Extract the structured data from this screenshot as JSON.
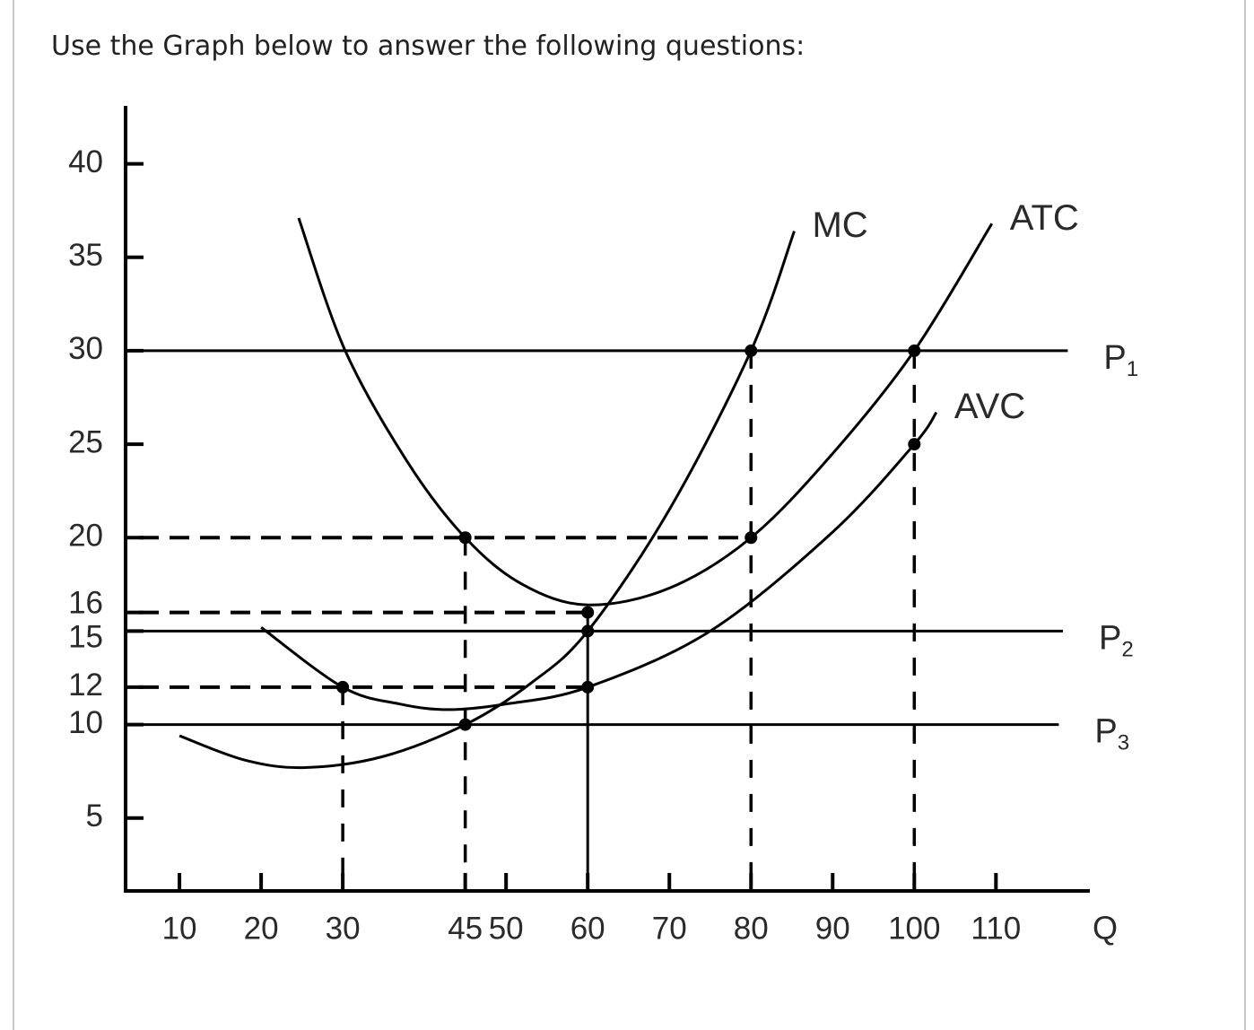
{
  "prompt": "Use the Graph below to answer the following questions:",
  "chart_data": {
    "type": "line",
    "x_label": "Q",
    "xlim": [
      3.4,
      121.5
    ],
    "ylim": [
      1.1,
      43.1
    ],
    "xticks": [
      10,
      20,
      30,
      45,
      50,
      60,
      70,
      80,
      90,
      100,
      110
    ],
    "yticks": [
      40,
      35,
      30,
      25,
      20,
      16,
      15,
      12,
      10,
      5
    ],
    "series": [
      {
        "name": "ATC",
        "color": "#000000",
        "x": [
          24.6,
          30.3,
          38,
          45,
          52,
          60,
          70,
          80,
          90,
          100,
          109.5
        ],
        "values": [
          37.1,
          30,
          24,
          20,
          17.5,
          16.4,
          17.3,
          20,
          24.5,
          30,
          36.8
        ]
      },
      {
        "name": "AVC",
        "color": "#000000",
        "x": [
          20,
          30,
          37,
          43,
          50,
          60,
          75,
          90,
          100,
          102.7
        ],
        "values": [
          15.2,
          12,
          11.1,
          10.8,
          11.1,
          12,
          15,
          20.3,
          25,
          26.7
        ]
      },
      {
        "name": "MC",
        "color": "#000000",
        "x": [
          10,
          18,
          25.4,
          35,
          45,
          53,
          60,
          70,
          80,
          85.3
        ],
        "values": [
          9.4,
          8.1,
          7.7,
          8.3,
          10,
          12.2,
          15,
          21.5,
          30,
          36.4
        ]
      }
    ],
    "price_lines": [
      {
        "text": "P",
        "sub": "1",
        "y": 30,
        "x_end": 118.8
      },
      {
        "text": "P",
        "sub": "2",
        "y": 15,
        "x_end": 118.2
      },
      {
        "text": "P",
        "sub": "3",
        "y": 10,
        "x_end": 117.7
      }
    ],
    "h_guides": [
      {
        "y": 20,
        "x_end": 80
      },
      {
        "y": 16,
        "x_end": 60
      },
      {
        "y": 12,
        "x_end": 60
      }
    ],
    "v_guides": [
      {
        "x": 30,
        "y_top": 12,
        "style": "dashed"
      },
      {
        "x": 45,
        "y_top": 20,
        "style": "dashed"
      },
      {
        "x": 60,
        "y_top": 16,
        "style": "solid"
      },
      {
        "x": 80,
        "y_top": 30,
        "style": "dashed"
      },
      {
        "x": 100,
        "y_top": 30,
        "style": "dashed"
      }
    ],
    "points": [
      {
        "x": 45,
        "y": 20
      },
      {
        "x": 60,
        "y": 16
      },
      {
        "x": 80,
        "y": 30
      },
      {
        "x": 100,
        "y": 30
      },
      {
        "x": 80,
        "y": 20
      },
      {
        "x": 100,
        "y": 25
      },
      {
        "x": 30,
        "y": 12
      },
      {
        "x": 60,
        "y": 12
      },
      {
        "x": 60,
        "y": 15
      },
      {
        "x": 45,
        "y": 10
      }
    ]
  }
}
